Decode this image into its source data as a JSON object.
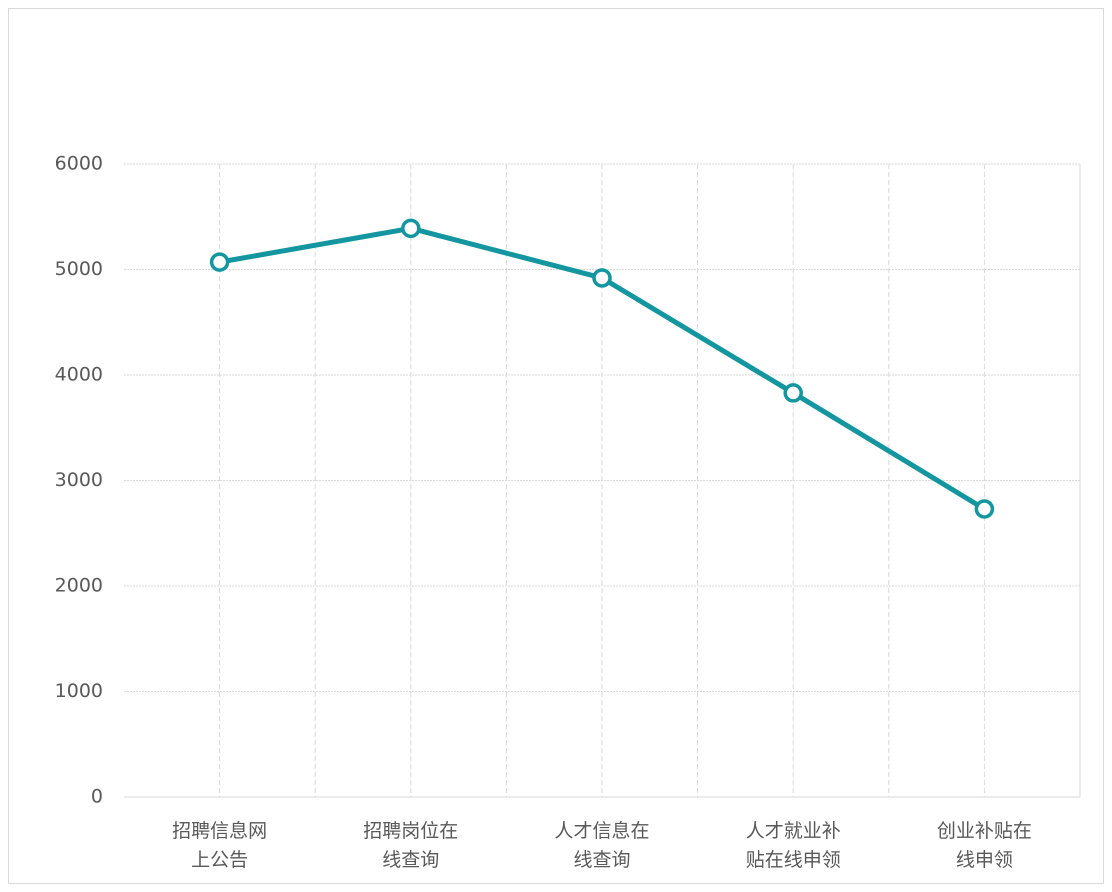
{
  "chart_data": {
    "type": "line",
    "categories": [
      "招聘信息网\n上公告",
      "招聘岗位在\n线查询",
      "人才信息在\n线查询",
      "人才就业补\n贴在线申领",
      "创业补贴在\n线申领"
    ],
    "series": [
      {
        "color": "#13969f",
        "values": [
          5070,
          5390,
          4920,
          3830,
          2730
        ]
      }
    ],
    "ylim": [
      0,
      6000
    ],
    "yticks": [
      0,
      1000,
      2000,
      3000,
      4000,
      5000,
      6000
    ],
    "grid": true
  }
}
